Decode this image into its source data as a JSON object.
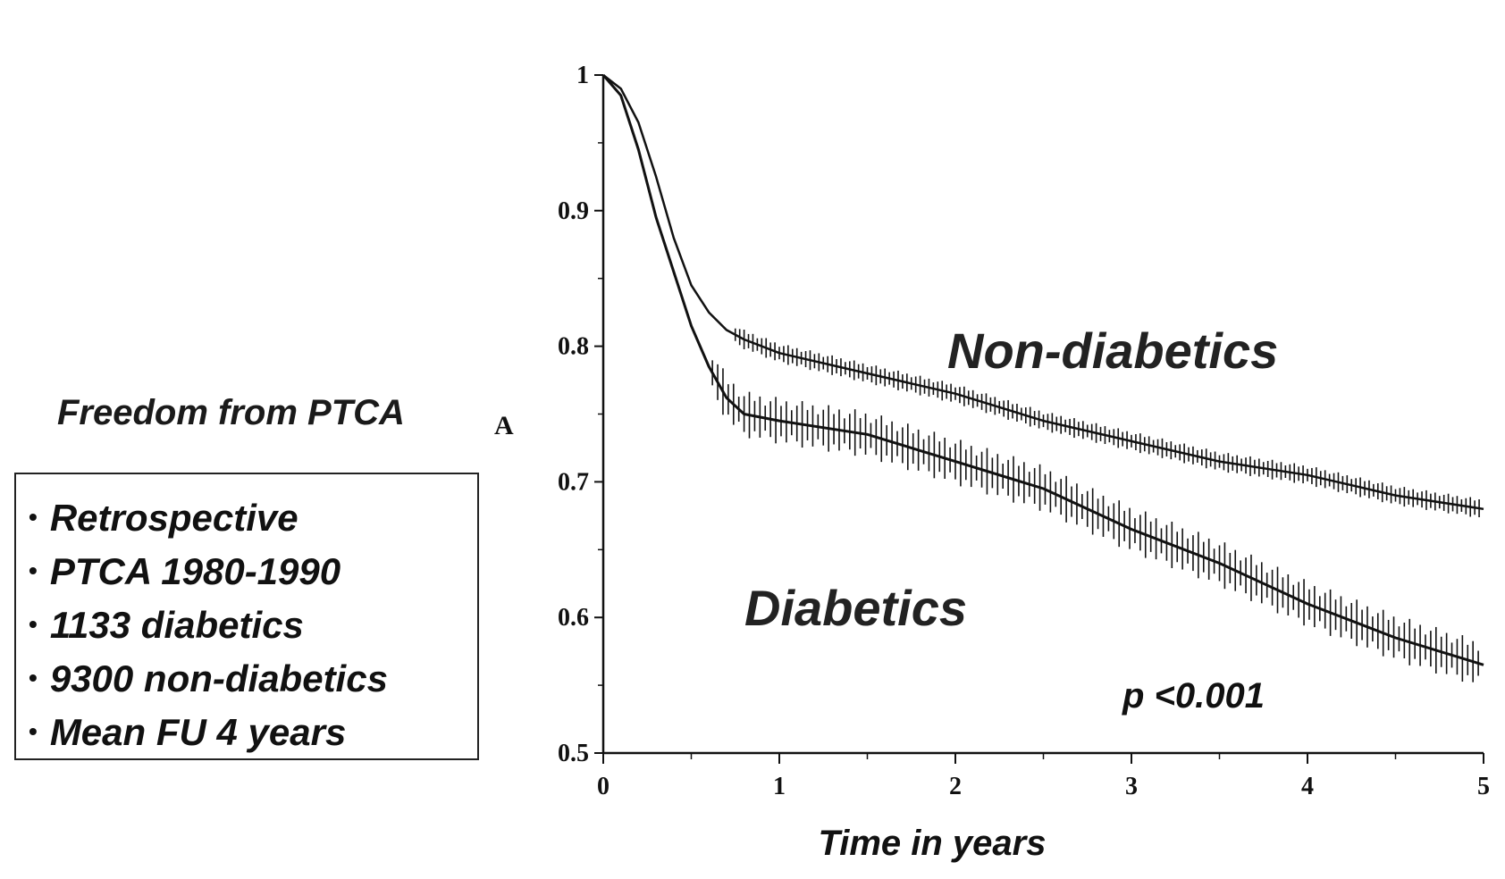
{
  "side_title": "Freedom from PTCA",
  "info_box": {
    "bullet": "•",
    "items": [
      "Retrospective",
      "PTCA 1980-1990",
      "1133 diabetics",
      "9300 non-diabetics",
      "Mean FU 4 years"
    ]
  },
  "chart_data": {
    "type": "line",
    "title": "",
    "panel_label": "A",
    "xlabel": "Time in years",
    "ylabel": "",
    "xlim": [
      0,
      5
    ],
    "ylim": [
      0.5,
      1.0
    ],
    "x_ticks": [
      0,
      1,
      2,
      3,
      4,
      5
    ],
    "x_tick_labels": [
      "0",
      "1",
      "2",
      "3",
      "4",
      "5"
    ],
    "y_ticks": [
      0.5,
      0.6,
      0.7,
      0.8,
      0.9,
      1.0
    ],
    "y_tick_labels": [
      "0.5",
      "0.6",
      "0.7",
      "0.8",
      "0.9",
      "1"
    ],
    "annotation": "p <0.001",
    "series": [
      {
        "name": "Non-diabetics",
        "points": [
          [
            0,
            1.0
          ],
          [
            0.1,
            0.99
          ],
          [
            0.2,
            0.965
          ],
          [
            0.3,
            0.925
          ],
          [
            0.4,
            0.88
          ],
          [
            0.5,
            0.845
          ],
          [
            0.6,
            0.825
          ],
          [
            0.7,
            0.812
          ],
          [
            0.8,
            0.805
          ],
          [
            1.0,
            0.795
          ],
          [
            1.5,
            0.78
          ],
          [
            2.0,
            0.765
          ],
          [
            2.5,
            0.745
          ],
          [
            3.0,
            0.73
          ],
          [
            3.5,
            0.715
          ],
          [
            4.0,
            0.705
          ],
          [
            4.5,
            0.69
          ],
          [
            5.0,
            0.68
          ]
        ]
      },
      {
        "name": "Diabetics",
        "points": [
          [
            0,
            1.0
          ],
          [
            0.1,
            0.985
          ],
          [
            0.2,
            0.945
          ],
          [
            0.3,
            0.895
          ],
          [
            0.4,
            0.855
          ],
          [
            0.5,
            0.815
          ],
          [
            0.6,
            0.785
          ],
          [
            0.7,
            0.762
          ],
          [
            0.8,
            0.75
          ],
          [
            1.0,
            0.745
          ],
          [
            1.5,
            0.735
          ],
          [
            2.0,
            0.715
          ],
          [
            2.5,
            0.695
          ],
          [
            3.0,
            0.665
          ],
          [
            3.5,
            0.64
          ],
          [
            4.0,
            0.61
          ],
          [
            4.5,
            0.585
          ],
          [
            5.0,
            0.565
          ]
        ]
      }
    ]
  }
}
